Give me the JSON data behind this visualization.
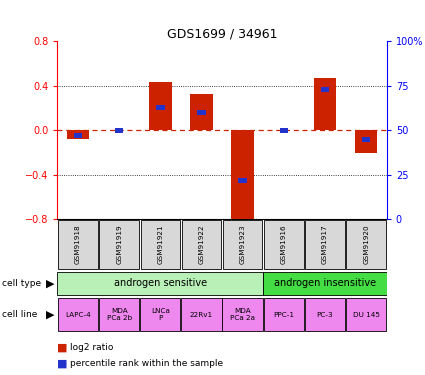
{
  "title": "GDS1699 / 34961",
  "samples": [
    "GSM91918",
    "GSM91919",
    "GSM91921",
    "GSM91922",
    "GSM91923",
    "GSM91916",
    "GSM91917",
    "GSM91920"
  ],
  "log2_ratio": [
    -0.08,
    0.0,
    0.43,
    0.33,
    -0.82,
    0.0,
    0.47,
    -0.2
  ],
  "percentile_rank": [
    47,
    50,
    63,
    60,
    22,
    50,
    73,
    45
  ],
  "ylim": [
    -0.8,
    0.8
  ],
  "yticks_left": [
    -0.8,
    -0.4,
    0.0,
    0.4,
    0.8
  ],
  "yticks_right": [
    0,
    25,
    50,
    75,
    100
  ],
  "cell_type_groups": [
    {
      "label": "androgen sensitive",
      "start": 0,
      "end": 5,
      "color": "#b8f0b8"
    },
    {
      "label": "androgen insensitive",
      "start": 5,
      "end": 8,
      "color": "#44dd44"
    }
  ],
  "cell_lines": [
    "LAPC-4",
    "MDA\nPCa 2b",
    "LNCa\nP",
    "22Rv1",
    "MDA\nPCa 2a",
    "PPC-1",
    "PC-3",
    "DU 145"
  ],
  "cell_line_color": "#ee88ee",
  "sample_box_color": "#d8d8d8",
  "bar_color_red": "#cc2200",
  "bar_color_blue": "#2233cc",
  "legend_red": "log2 ratio",
  "legend_blue": "percentile rank within the sample",
  "zero_line_color": "#cc2200",
  "grid_color": "#000000"
}
